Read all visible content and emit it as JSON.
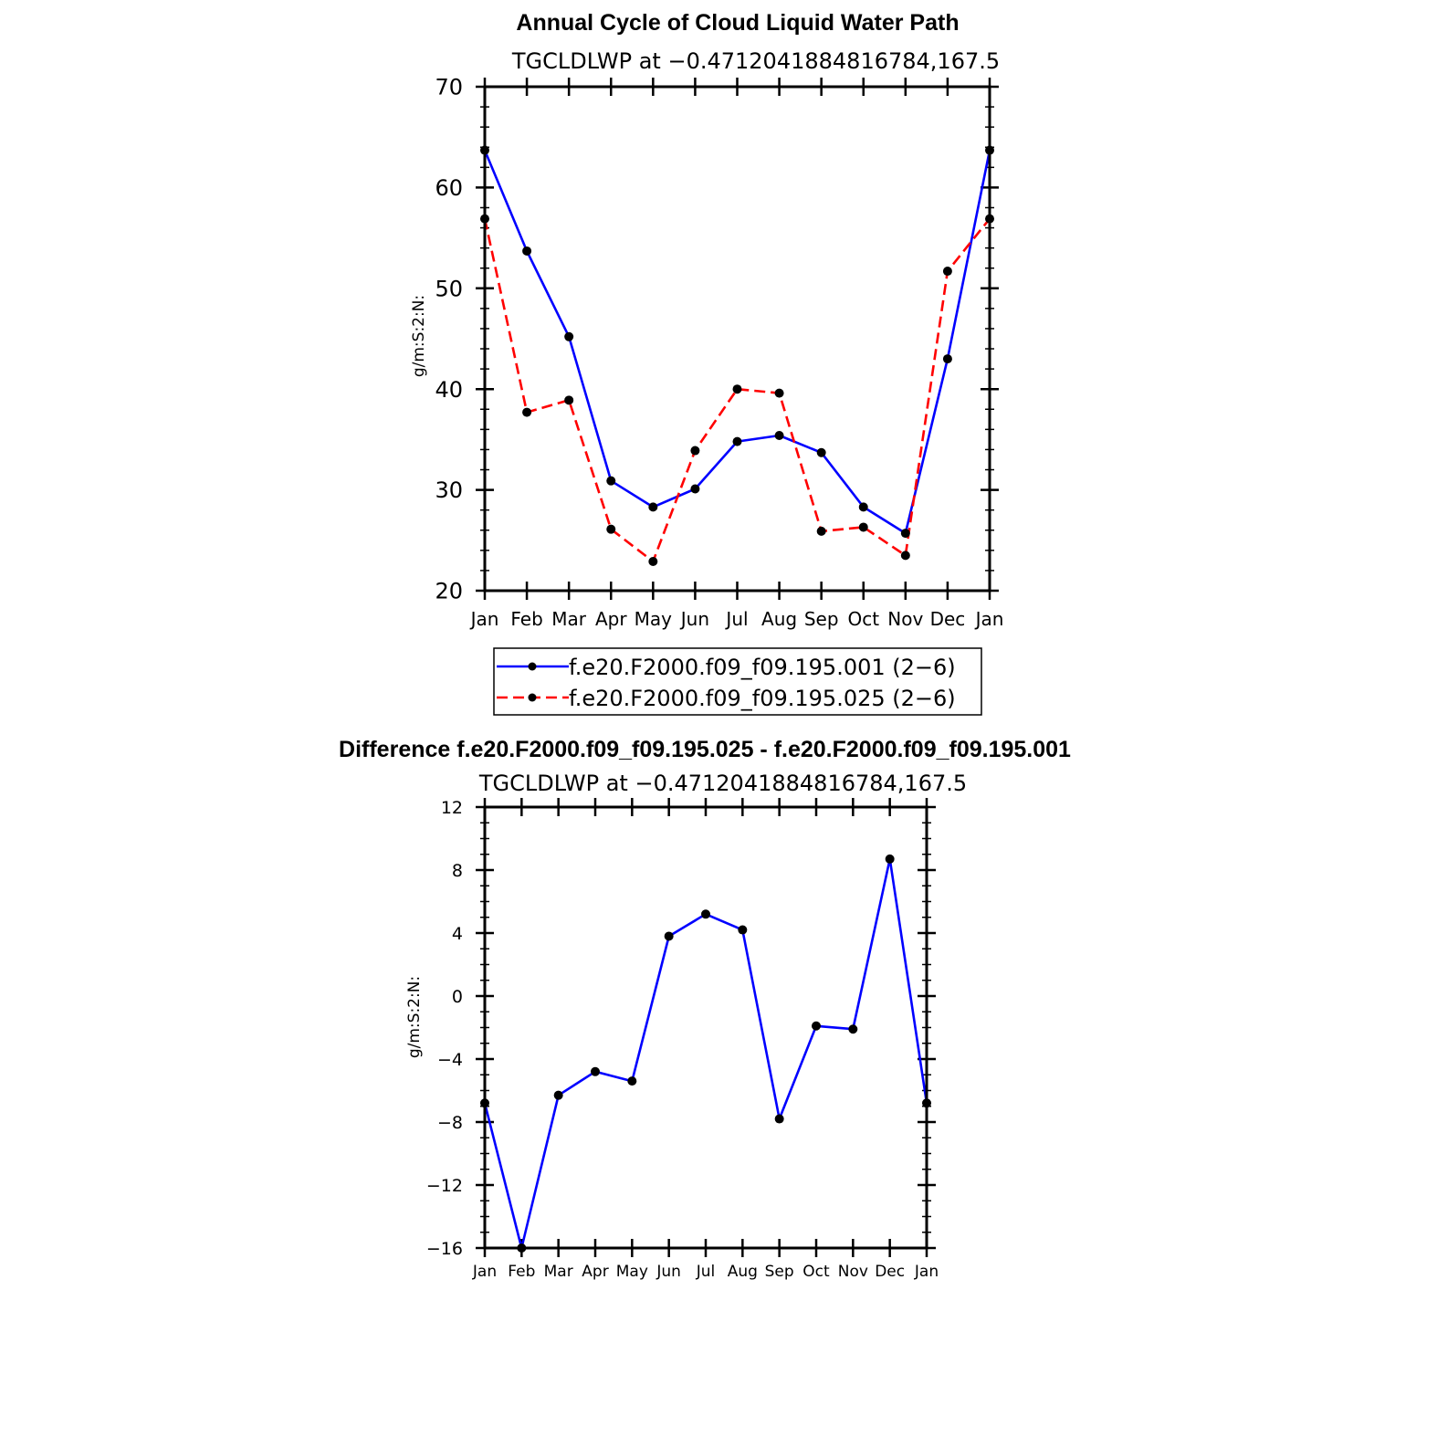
{
  "chart_data": [
    {
      "type": "line",
      "title": "Annual Cycle of Cloud Liquid Water Path",
      "subtitle": "TGCLDLWP at −0.4712041884816784,167.5",
      "ylabel": "g/m:S:2:N:",
      "xlabel": "",
      "categories": [
        "Jan",
        "Feb",
        "Mar",
        "Apr",
        "May",
        "Jun",
        "Jul",
        "Aug",
        "Sep",
        "Oct",
        "Nov",
        "Dec",
        "Jan"
      ],
      "ylim": [
        20,
        70
      ],
      "yticks": [
        "20",
        "30",
        "40",
        "50",
        "60",
        "70"
      ],
      "legend_position": "bottom-center",
      "series": [
        {
          "name": "f.e20.F2000.f09_f09.195.001 (2−6)",
          "color": "#0000ff",
          "dash": "solid",
          "values": [
            63.7,
            53.7,
            45.2,
            30.9,
            28.3,
            30.1,
            34.8,
            35.4,
            33.7,
            28.3,
            25.7,
            43.0,
            63.7
          ]
        },
        {
          "name": "f.e20.F2000.f09_f09.195.025 (2−6)",
          "color": "#ff0000",
          "dash": "dashed",
          "values": [
            56.9,
            37.7,
            38.9,
            26.1,
            22.9,
            33.9,
            40.0,
            39.6,
            25.9,
            26.3,
            23.5,
            51.7,
            56.9
          ]
        }
      ]
    },
    {
      "type": "line",
      "title": "Difference f.e20.F2000.f09_f09.195.025 - f.e20.F2000.f09_f09.195.001",
      "subtitle": "TGCLDLWP at −0.4712041884816784,167.5",
      "ylabel": "g/m:S:2:N:",
      "xlabel": "",
      "categories": [
        "Jan",
        "Feb",
        "Mar",
        "Apr",
        "May",
        "Jun",
        "Jul",
        "Aug",
        "Sep",
        "Oct",
        "Nov",
        "Dec",
        "Jan"
      ],
      "ylim": [
        -16,
        12
      ],
      "yticks": [
        "−16",
        "−12",
        "−8",
        "−4",
        "0",
        "4",
        "8",
        "12"
      ],
      "series": [
        {
          "color": "#0000ff",
          "dash": "solid",
          "values": [
            -6.8,
            -16.0,
            -6.3,
            -4.8,
            -5.4,
            3.8,
            5.2,
            4.2,
            -7.8,
            -1.9,
            -2.1,
            8.7,
            -6.8
          ]
        }
      ]
    }
  ]
}
